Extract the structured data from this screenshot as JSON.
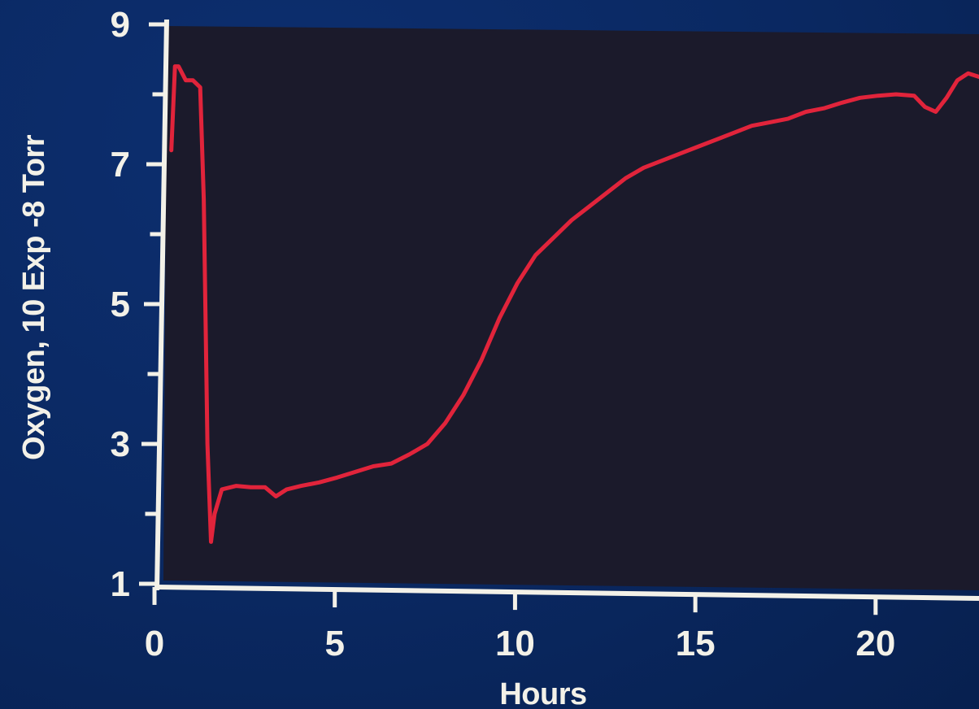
{
  "colors": {
    "background": "#0a2861",
    "plot_background": "#1b1a2b",
    "axis": "#f3f1e8",
    "line": "#e1243b"
  },
  "chart_data": {
    "type": "line",
    "title": "",
    "xlabel": "Hours",
    "ylabel": "Oxygen, 10 Exp -8 Torr",
    "xlim": [
      0,
      22.8
    ],
    "ylim": [
      1,
      9
    ],
    "x_ticks": [
      0,
      5,
      10,
      15,
      20
    ],
    "x_tick_labels": [
      "0",
      "5",
      "10",
      "15",
      "20"
    ],
    "y_ticks": [
      1,
      3,
      5,
      7,
      9
    ],
    "y_tick_labels": [
      "1",
      "3",
      "5",
      "7",
      "9"
    ],
    "y_minor_ticks": [
      2,
      4,
      6,
      8
    ],
    "grid": false,
    "legend": "none",
    "series": [
      {
        "x": [
          0.4,
          0.5,
          0.6,
          0.8,
          1.0,
          1.2,
          1.3,
          1.4,
          1.5,
          1.6,
          1.8,
          2.2,
          2.6,
          3.0,
          3.3,
          3.6,
          4.0,
          4.5,
          5.0,
          5.5,
          6.0,
          6.5,
          7.0,
          7.5,
          8.0,
          8.5,
          9.0,
          9.5,
          10.0,
          10.5,
          11.0,
          11.5,
          12.0,
          12.5,
          13.0,
          13.5,
          14.0,
          14.5,
          15.0,
          15.5,
          16.0,
          16.5,
          17.0,
          17.5,
          18.0,
          18.5,
          19.0,
          19.5,
          20.0,
          20.5,
          21.0,
          21.3,
          21.6,
          21.9,
          22.2,
          22.5,
          22.8
        ],
        "y": [
          7.2,
          8.4,
          8.4,
          8.2,
          8.2,
          8.1,
          6.5,
          3.0,
          1.6,
          2.0,
          2.35,
          2.4,
          2.38,
          2.38,
          2.25,
          2.35,
          2.4,
          2.45,
          2.52,
          2.6,
          2.68,
          2.72,
          2.85,
          3.0,
          3.3,
          3.7,
          4.2,
          4.8,
          5.3,
          5.7,
          5.95,
          6.2,
          6.4,
          6.6,
          6.8,
          6.95,
          7.05,
          7.15,
          7.25,
          7.35,
          7.45,
          7.55,
          7.6,
          7.65,
          7.75,
          7.8,
          7.88,
          7.95,
          7.98,
          8.0,
          7.98,
          7.82,
          7.75,
          7.95,
          8.2,
          8.3,
          8.25
        ]
      }
    ]
  }
}
